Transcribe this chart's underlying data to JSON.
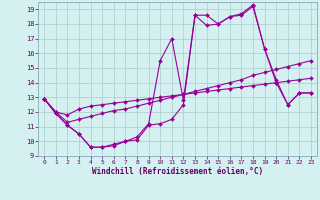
{
  "background_color": "#d4f0f0",
  "grid_color": "#aacccc",
  "line_color": "#990099",
  "markersize": 2.0,
  "linewidth": 0.8,
  "xlim": [
    -0.5,
    23.5
  ],
  "ylim": [
    9,
    19.5
  ],
  "yticks": [
    9,
    10,
    11,
    12,
    13,
    14,
    15,
    16,
    17,
    18,
    19
  ],
  "xticks": [
    0,
    1,
    2,
    3,
    4,
    5,
    6,
    7,
    8,
    9,
    10,
    11,
    12,
    13,
    14,
    15,
    16,
    17,
    18,
    19,
    20,
    21,
    22,
    23
  ],
  "xlabel": "Windchill (Refroidissement éolien,°C)",
  "series": [
    [
      12.9,
      11.9,
      11.1,
      10.5,
      9.6,
      9.6,
      9.7,
      10.0,
      10.3,
      11.2,
      15.5,
      17.0,
      12.8,
      18.6,
      17.9,
      18.0,
      18.5,
      18.6,
      19.2,
      16.3,
      14.0,
      12.5,
      13.3,
      13.3
    ],
    [
      12.9,
      11.9,
      11.1,
      10.5,
      9.6,
      9.6,
      9.8,
      10.0,
      10.1,
      11.1,
      11.2,
      11.5,
      12.5,
      18.6,
      18.6,
      18.0,
      18.5,
      18.7,
      19.3,
      16.3,
      14.2,
      12.5,
      13.3,
      13.3
    ],
    [
      12.9,
      12.0,
      11.3,
      11.5,
      11.7,
      11.9,
      12.1,
      12.2,
      12.4,
      12.6,
      12.8,
      13.0,
      13.2,
      13.4,
      13.6,
      13.8,
      14.0,
      14.2,
      14.5,
      14.7,
      14.9,
      15.1,
      15.3,
      15.5
    ],
    [
      12.9,
      12.0,
      11.8,
      12.2,
      12.4,
      12.5,
      12.6,
      12.7,
      12.8,
      12.9,
      13.0,
      13.1,
      13.2,
      13.3,
      13.4,
      13.5,
      13.6,
      13.7,
      13.8,
      13.9,
      14.0,
      14.1,
      14.2,
      14.3
    ]
  ]
}
